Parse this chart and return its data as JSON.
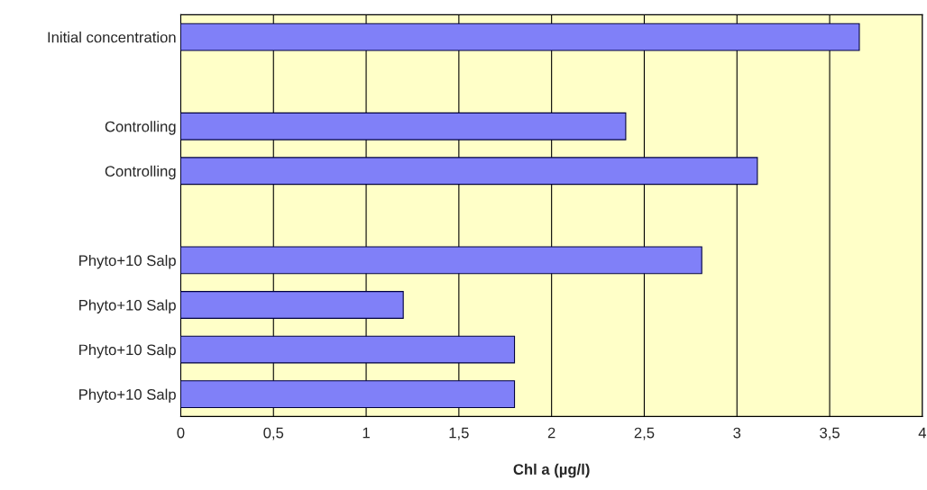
{
  "chart_data": {
    "type": "bar",
    "orientation": "horizontal",
    "xlabel": "Chl a (µg/l)",
    "categories": [
      "Initial concentration",
      null,
      "Controlling",
      "Controlling",
      null,
      "Phyto+10 Salp",
      "Phyto+10 Salp",
      "Phyto+10 Salp",
      "Phyto+10 Salp"
    ],
    "values": [
      3.66,
      null,
      2.4,
      3.11,
      null,
      2.81,
      1.2,
      1.8,
      1.8
    ],
    "color": "#8080f8",
    "xlim": [
      0,
      4
    ],
    "xticks": [
      0,
      {
        "value": 0.5,
        "label": "0,5"
      },
      1,
      {
        "value": 1.5,
        "label": "1,5"
      },
      2,
      {
        "value": 2.5,
        "label": "2,5"
      },
      3,
      {
        "value": 3.5,
        "label": "3,5"
      },
      4
    ],
    "grid": "x"
  }
}
